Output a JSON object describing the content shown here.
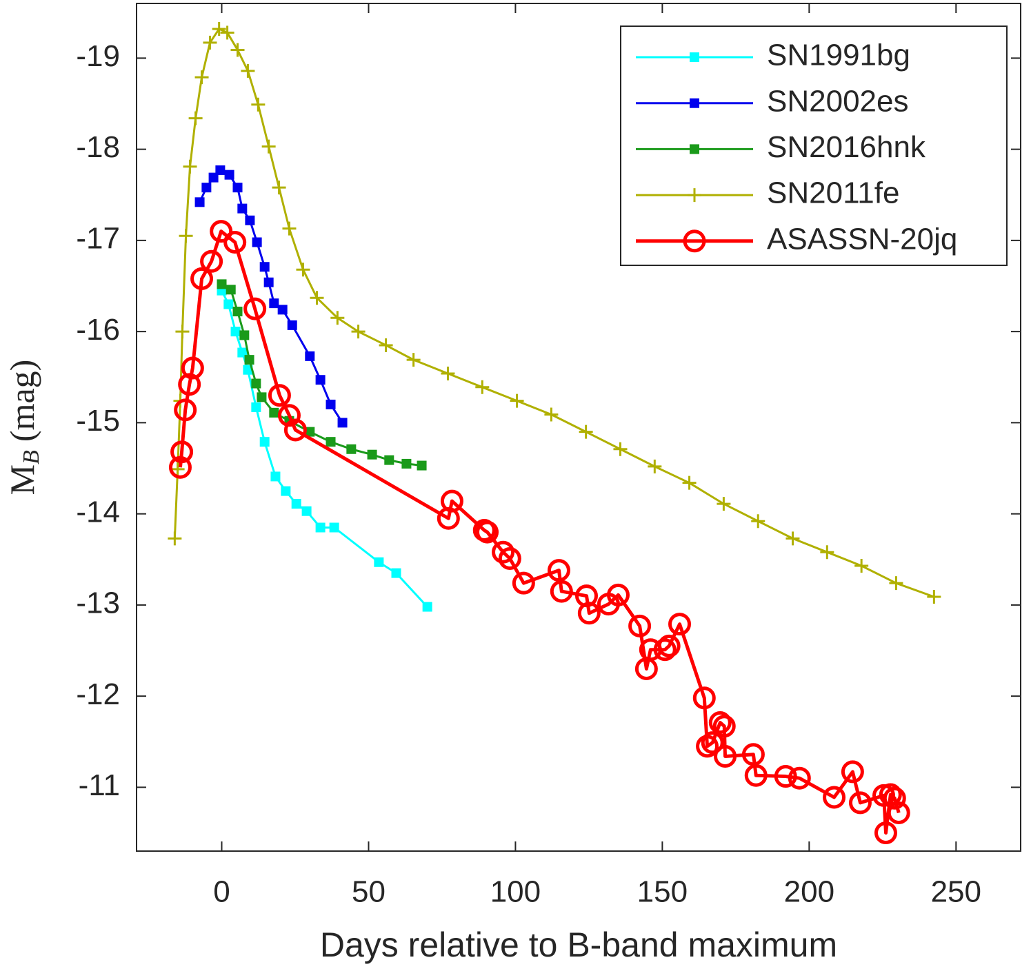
{
  "chart_data": {
    "type": "line",
    "xlabel": "Days relative to B-band maximum",
    "ylabel": {
      "main": "M",
      "sub": "B",
      "unit": "(mag)"
    },
    "xlim": [
      -29,
      272
    ],
    "ylim": [
      -10.3,
      -19.6
    ],
    "xticks": [
      0,
      50,
      100,
      150,
      200,
      250
    ],
    "yticks": [
      -19,
      -18,
      -17,
      -16,
      -15,
      -14,
      -13,
      -12,
      -11
    ],
    "legend": "upper right",
    "series": [
      {
        "name": "SN1991bg",
        "color": "#00ffff",
        "marker": "square",
        "line_width": 3,
        "x": [
          0,
          2.3,
          4.7,
          7.0,
          8.9,
          11.7,
          14.6,
          18.3,
          21.8,
          25.4,
          28.9,
          33.6,
          38.3,
          53.5,
          59.4,
          70.0
        ],
        "values": [
          -16.45,
          -16.3,
          -16.0,
          -15.77,
          -15.58,
          -15.17,
          -14.79,
          -14.41,
          -14.25,
          -14.11,
          -14.03,
          -13.85,
          -13.85,
          -13.47,
          -13.35,
          -12.98
        ]
      },
      {
        "name": "SN2002es",
        "color": "#0000ee",
        "marker": "square",
        "line_width": 3,
        "x": [
          -7.5,
          -5.2,
          -2.8,
          -0.5,
          2.6,
          5.4,
          7.0,
          9.6,
          12.0,
          14.6,
          16.0,
          17.8,
          20.7,
          24.0,
          30.0,
          33.6,
          37.1,
          41.1
        ],
        "values": [
          -17.42,
          -17.58,
          -17.69,
          -17.77,
          -17.72,
          -17.58,
          -17.35,
          -17.22,
          -16.98,
          -16.71,
          -16.54,
          -16.31,
          -16.24,
          -16.07,
          -15.73,
          -15.47,
          -15.2,
          -15.0
        ]
      },
      {
        "name": "SN2016hnk",
        "color": "#1a9a1a",
        "marker": "square",
        "line_width": 3,
        "x": [
          0,
          3.1,
          5.4,
          7.7,
          9.4,
          11.7,
          13.6,
          17.8,
          23.0,
          30.0,
          37.1,
          44.1,
          51.2,
          57.0,
          62.9,
          68.1
        ],
        "values": [
          -16.52,
          -16.46,
          -16.22,
          -15.96,
          -15.69,
          -15.43,
          -15.28,
          -15.11,
          -15.02,
          -14.9,
          -14.79,
          -14.71,
          -14.65,
          -14.59,
          -14.55,
          -14.53
        ]
      },
      {
        "name": "SN2011fe",
        "color": "#b0b000",
        "marker": "plus",
        "line_width": 3,
        "x": [
          -16.0,
          -15.0,
          -14.1,
          -13.4,
          -12.2,
          -10.8,
          -8.9,
          -6.8,
          -4.0,
          -0.9,
          1.9,
          5.4,
          8.9,
          12.4,
          16.0,
          19.5,
          23.0,
          27.7,
          32.4,
          39.4,
          46.5,
          55.9,
          65.3,
          77.0,
          88.7,
          100.5,
          112.2,
          124.0,
          135.7,
          147.4,
          159.2,
          170.9,
          182.6,
          194.4,
          206.1,
          217.8,
          229.6,
          242.5
        ],
        "values": [
          -13.73,
          -14.49,
          -15.24,
          -16.0,
          -17.05,
          -17.81,
          -18.34,
          -18.79,
          -19.17,
          -19.32,
          -19.28,
          -19.09,
          -18.86,
          -18.49,
          -18.03,
          -17.58,
          -17.13,
          -16.68,
          -16.37,
          -16.15,
          -16.0,
          -15.85,
          -15.69,
          -15.54,
          -15.39,
          -15.24,
          -15.09,
          -14.9,
          -14.71,
          -14.52,
          -14.34,
          -14.11,
          -13.92,
          -13.73,
          -13.58,
          -13.43,
          -13.24,
          -13.09
        ]
      },
      {
        "name": "ASASSN-20jq",
        "color": "#ff0000",
        "marker": "circle",
        "line_width": 5,
        "x": [
          -14.1,
          -13.6,
          -12.4,
          -11.0,
          -9.9,
          -6.8,
          -3.5,
          -0.2,
          4.5,
          11.3,
          19.7,
          23.0,
          25.1,
          77.2,
          78.4,
          89.4,
          90.4,
          95.8,
          98.1,
          102.8,
          114.8,
          115.7,
          124.2,
          125.1,
          131.7,
          135.0,
          142.3,
          144.6,
          146.0,
          150.9,
          152.3,
          155.9,
          164.3,
          165.3,
          167.1,
          169.7,
          171.1,
          171.4,
          181.0,
          181.9,
          192.0,
          196.7,
          208.5,
          214.8,
          217.4,
          225.4,
          226.1,
          227.7,
          229.1,
          230.5
        ],
        "values": [
          -14.51,
          -14.68,
          -15.14,
          -15.42,
          -15.6,
          -16.58,
          -16.77,
          -17.1,
          -16.98,
          -16.25,
          -15.3,
          -15.08,
          -14.92,
          -13.95,
          -14.14,
          -13.82,
          -13.8,
          -13.58,
          -13.51,
          -13.24,
          -13.38,
          -13.15,
          -13.1,
          -12.91,
          -13.01,
          -13.11,
          -12.77,
          -12.3,
          -12.51,
          -12.51,
          -12.55,
          -12.79,
          -11.98,
          -11.45,
          -11.49,
          -11.71,
          -11.67,
          -11.34,
          -11.36,
          -11.13,
          -11.12,
          -11.1,
          -10.89,
          -11.17,
          -10.83,
          -10.91,
          -10.5,
          -10.92,
          -10.88,
          -10.72
        ]
      }
    ]
  }
}
